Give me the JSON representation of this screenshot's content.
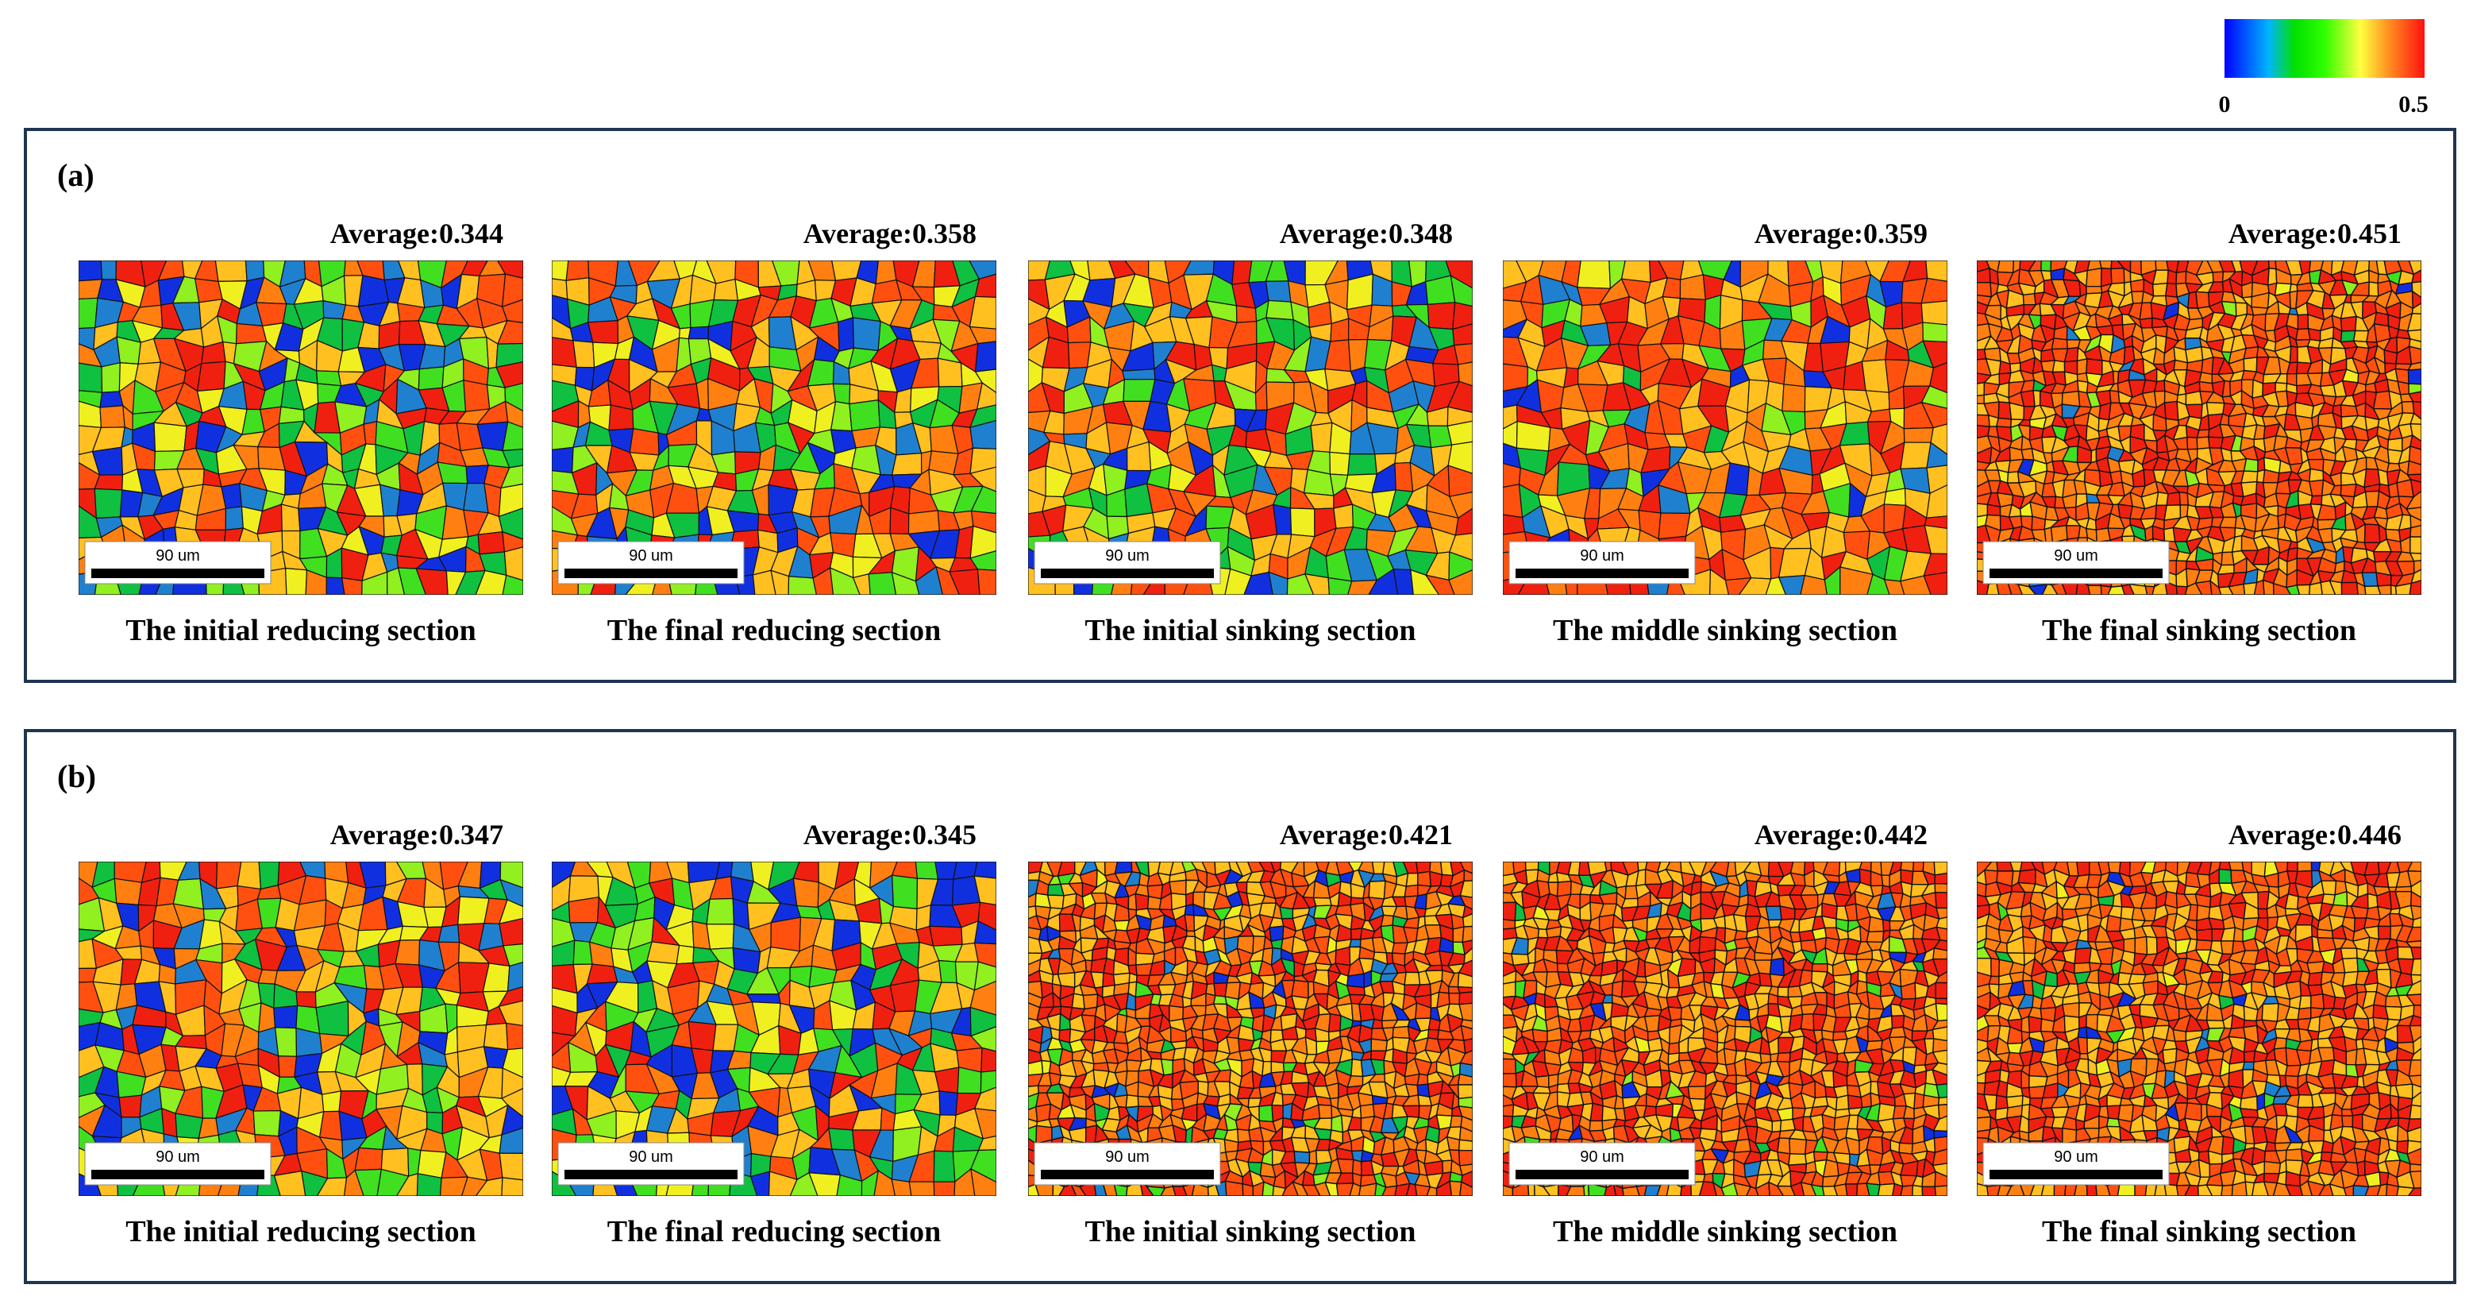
{
  "colorbar": {
    "min": 0,
    "max": 0.5
  },
  "panels": [
    {
      "label": "(a)",
      "maps": [
        {
          "average": "Average:0.344",
          "scale_bar": "90 um",
          "caption": "The initial reducing section"
        },
        {
          "average": "Average:0.358",
          "scale_bar": "90 um",
          "caption": "The final reducing section"
        },
        {
          "average": "Average:0.348",
          "scale_bar": "90 um",
          "caption": "The initial sinking section"
        },
        {
          "average": "Average:0.359",
          "scale_bar": "90 um",
          "caption": "The middle sinking section"
        },
        {
          "average": "Average:0.451",
          "scale_bar": "90 um",
          "caption": "The final sinking section"
        }
      ]
    },
    {
      "label": "(b)",
      "maps": [
        {
          "average": "Average:0.347",
          "scale_bar": "90 um",
          "caption": "The initial reducing section"
        },
        {
          "average": "Average:0.345",
          "scale_bar": "90 um",
          "caption": "The final reducing section"
        },
        {
          "average": "Average:0.421",
          "scale_bar": "90 um",
          "caption": "The initial sinking section"
        },
        {
          "average": "Average:0.442",
          "scale_bar": "90 um",
          "caption": "The middle sinking section"
        },
        {
          "average": "Average:0.446",
          "scale_bar": "90 um",
          "caption": "The final sinking section"
        }
      ]
    }
  ]
}
